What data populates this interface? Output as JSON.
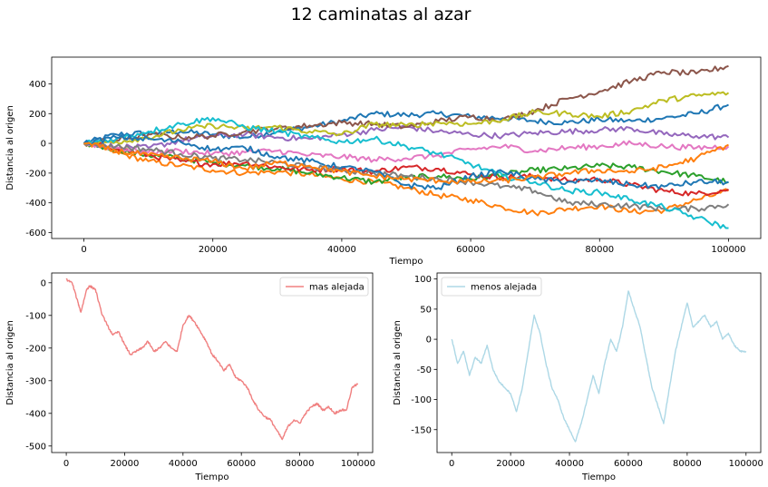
{
  "figure_title": "12 caminatas al azar",
  "chart_data": [
    {
      "type": "line",
      "xlabel": "Tiempo",
      "ylabel": "Distancia al origen",
      "xlim": [
        -5000,
        105000
      ],
      "ylim": [
        -640,
        580
      ],
      "xticks": [
        0,
        20000,
        40000,
        60000,
        80000,
        100000
      ],
      "yticks": [
        -600,
        -400,
        -200,
        0,
        200,
        400
      ],
      "x": [
        0,
        5000,
        10000,
        15000,
        20000,
        25000,
        30000,
        35000,
        40000,
        45000,
        50000,
        55000,
        60000,
        65000,
        70000,
        75000,
        80000,
        85000,
        90000,
        95000,
        100000
      ],
      "series": [
        {
          "color": "#1f77b4",
          "values": [
            0,
            60,
            70,
            80,
            60,
            40,
            80,
            110,
            150,
            200,
            190,
            200,
            180,
            170,
            150,
            140,
            160,
            150,
            170,
            200,
            260
          ]
        },
        {
          "color": "#ff7f0e",
          "values": [
            0,
            -60,
            -120,
            -150,
            -180,
            -200,
            -190,
            -210,
            -240,
            -260,
            -300,
            -350,
            -380,
            -430,
            -470,
            -440,
            -420,
            -460,
            -450,
            -380,
            -320
          ]
        },
        {
          "color": "#2ca02c",
          "values": [
            0,
            -40,
            -80,
            -100,
            -130,
            -150,
            -170,
            -200,
            -230,
            -260,
            -230,
            -220,
            -240,
            -210,
            -180,
            -170,
            -150,
            -160,
            -190,
            -220,
            -260
          ]
        },
        {
          "color": "#d62728",
          "values": [
            0,
            -30,
            -80,
            -120,
            -140,
            -130,
            -160,
            -180,
            -170,
            -190,
            -160,
            -170,
            -210,
            -230,
            -220,
            -250,
            -240,
            -280,
            -320,
            -340,
            -310
          ]
        },
        {
          "color": "#9467bd",
          "values": [
            0,
            -20,
            -30,
            20,
            50,
            60,
            40,
            30,
            60,
            90,
            110,
            80,
            60,
            50,
            70,
            80,
            90,
            100,
            60,
            50,
            40
          ]
        },
        {
          "color": "#8c564b",
          "values": [
            0,
            20,
            60,
            40,
            50,
            80,
            100,
            120,
            140,
            130,
            110,
            150,
            180,
            160,
            220,
            300,
            350,
            420,
            480,
            470,
            520
          ]
        },
        {
          "color": "#e377c2",
          "values": [
            0,
            -30,
            -60,
            -50,
            -70,
            -60,
            -50,
            -80,
            -90,
            -110,
            -100,
            -80,
            -40,
            -20,
            -50,
            -30,
            -20,
            0,
            -20,
            -30,
            -20
          ]
        },
        {
          "color": "#7f7f7f",
          "values": [
            0,
            -20,
            -40,
            -70,
            -100,
            -110,
            -130,
            -160,
            -180,
            -200,
            -220,
            -240,
            -260,
            -290,
            -320,
            -400,
            -410,
            -420,
            -440,
            -440,
            -410
          ]
        },
        {
          "color": "#bcbd22",
          "values": [
            0,
            10,
            40,
            90,
            120,
            100,
            110,
            80,
            60,
            130,
            120,
            140,
            130,
            160,
            210,
            200,
            180,
            220,
            290,
            320,
            340
          ]
        },
        {
          "color": "#17becf",
          "values": [
            0,
            30,
            80,
            130,
            170,
            110,
            80,
            40,
            10,
            30,
            -20,
            -70,
            -140,
            -220,
            -260,
            -320,
            -330,
            -380,
            -430,
            -500,
            -570
          ]
        },
        {
          "color": "#1f77b4",
          "values": [
            0,
            40,
            30,
            10,
            -40,
            -30,
            -90,
            -120,
            -160,
            -190,
            -280,
            -300,
            -220,
            -190,
            -240,
            -260,
            -250,
            -280,
            -290,
            -260,
            -260
          ]
        },
        {
          "color": "#ff7f0e",
          "values": [
            0,
            -50,
            -80,
            -100,
            -120,
            -170,
            -130,
            -150,
            -190,
            -220,
            -240,
            -250,
            -260,
            -250,
            -230,
            -200,
            -180,
            -190,
            -160,
            -100,
            -10
          ]
        }
      ]
    },
    {
      "type": "line",
      "xlabel": "Tiempo",
      "ylabel": "Distancia al origen",
      "xlim": [
        -5000,
        105000
      ],
      "ylim": [
        -520,
        30
      ],
      "xticks": [
        0,
        20000,
        40000,
        60000,
        80000,
        100000
      ],
      "yticks": [
        -500,
        -400,
        -300,
        -200,
        -100,
        0
      ],
      "legend": {
        "label": "mas alejada",
        "position": "upper right"
      },
      "series": [
        {
          "name": "mas alejada",
          "color": "#f08080",
          "x": [
            0,
            2000,
            4000,
            5000,
            7000,
            8000,
            10000,
            12000,
            14000,
            16000,
            18000,
            20000,
            22000,
            24000,
            26000,
            28000,
            30000,
            32000,
            34000,
            36000,
            38000,
            40000,
            42000,
            44000,
            46000,
            48000,
            50000,
            52000,
            54000,
            56000,
            58000,
            60000,
            62000,
            64000,
            66000,
            68000,
            70000,
            72000,
            74000,
            76000,
            78000,
            80000,
            82000,
            84000,
            86000,
            88000,
            90000,
            92000,
            94000,
            96000,
            98000,
            100000
          ],
          "values": [
            10,
            0,
            -60,
            -90,
            -20,
            -10,
            -20,
            -90,
            -130,
            -160,
            -150,
            -190,
            -220,
            -210,
            -200,
            -180,
            -210,
            -200,
            -180,
            -200,
            -210,
            -130,
            -100,
            -120,
            -150,
            -180,
            -220,
            -240,
            -270,
            -250,
            -290,
            -300,
            -320,
            -360,
            -390,
            -410,
            -420,
            -450,
            -480,
            -440,
            -420,
            -430,
            -400,
            -380,
            -370,
            -390,
            -380,
            -400,
            -390,
            -390,
            -320,
            -310
          ]
        }
      ]
    },
    {
      "type": "line",
      "xlabel": "Tiempo",
      "ylabel": "Distancia al origen",
      "xlim": [
        -5000,
        105000
      ],
      "ylim": [
        -188,
        110
      ],
      "xticks": [
        0,
        20000,
        40000,
        60000,
        80000,
        100000
      ],
      "yticks": [
        -150,
        -100,
        -50,
        0,
        50,
        100
      ],
      "legend": {
        "label": "menos alejada",
        "position": "upper left"
      },
      "series": [
        {
          "name": "menos alejada",
          "color": "#add8e6",
          "x": [
            0,
            2000,
            4000,
            6000,
            8000,
            10000,
            12000,
            14000,
            16000,
            18000,
            20000,
            22000,
            24000,
            26000,
            28000,
            30000,
            32000,
            34000,
            36000,
            38000,
            40000,
            42000,
            44000,
            46000,
            48000,
            50000,
            52000,
            54000,
            56000,
            58000,
            60000,
            62000,
            64000,
            66000,
            68000,
            70000,
            72000,
            74000,
            76000,
            78000,
            80000,
            82000,
            84000,
            86000,
            88000,
            90000,
            92000,
            94000,
            96000,
            98000,
            100000
          ],
          "values": [
            0,
            -40,
            -20,
            -60,
            -30,
            -40,
            -10,
            -50,
            -70,
            -80,
            -90,
            -120,
            -80,
            -20,
            40,
            10,
            -40,
            -80,
            -100,
            -130,
            -150,
            -170,
            -140,
            -100,
            -60,
            -90,
            -40,
            0,
            -20,
            20,
            80,
            50,
            20,
            -30,
            -80,
            -110,
            -140,
            -80,
            -20,
            20,
            60,
            20,
            30,
            40,
            20,
            30,
            0,
            10,
            -10,
            -20,
            -20
          ]
        }
      ]
    }
  ]
}
